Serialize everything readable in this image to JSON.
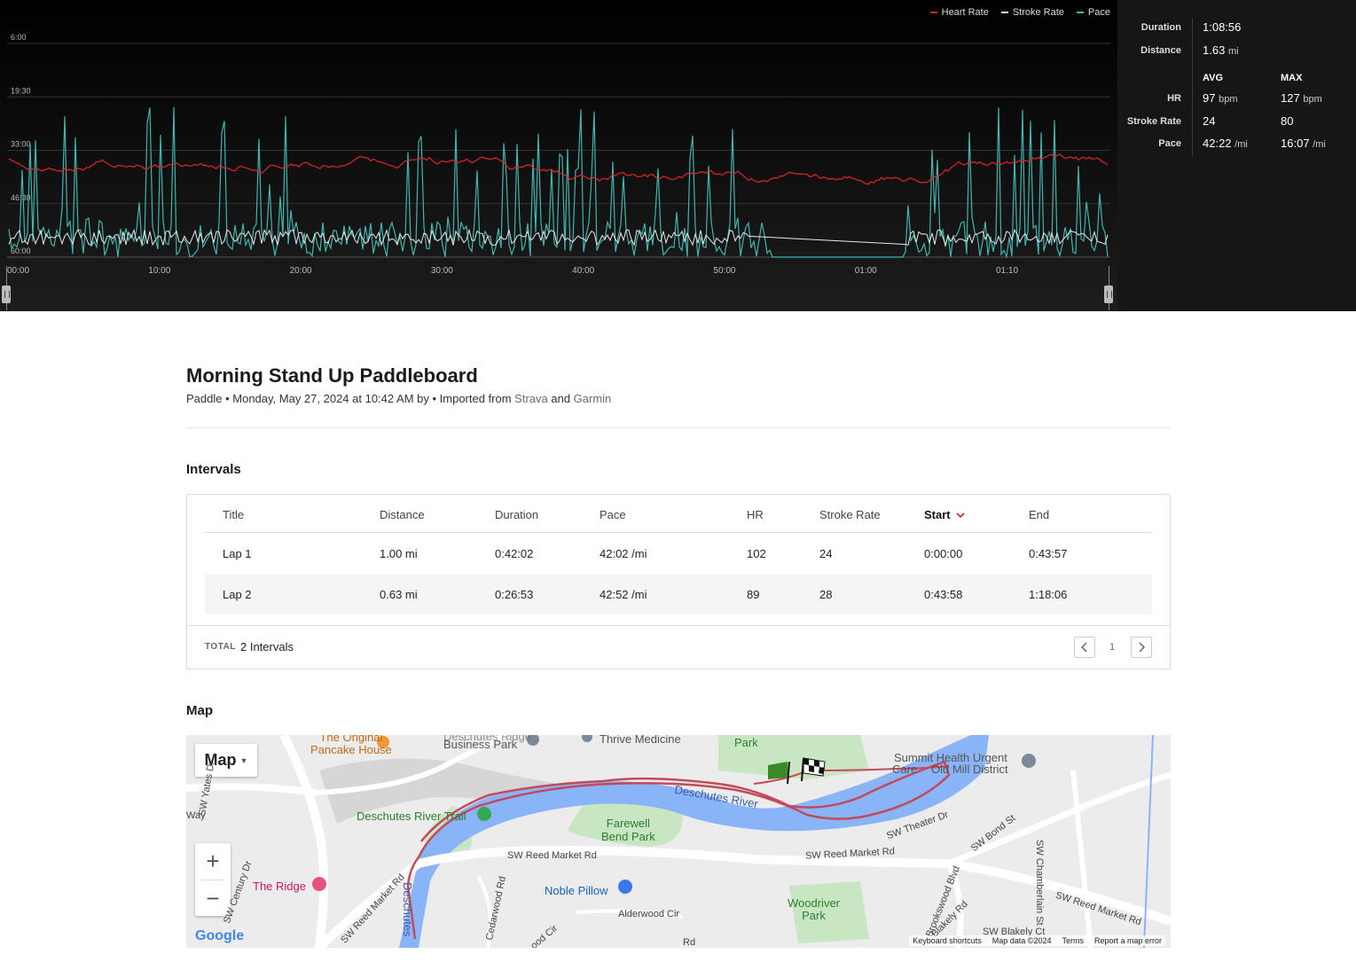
{
  "chart": {
    "legend": [
      {
        "label": "Heart Rate",
        "color": "#e0262a"
      },
      {
        "label": "Stroke Rate",
        "color": "#dddddd"
      },
      {
        "label": "Pace",
        "color": "#3fb6b0"
      }
    ],
    "y_ticks": [
      "6:00",
      "19:30",
      "33:00",
      "46:30",
      "60:00"
    ],
    "x_ticks": [
      "00:00",
      "10:00",
      "20:00",
      "30:00",
      "40:00",
      "50:00",
      "01:00",
      "01:10"
    ]
  },
  "stats": {
    "duration_label": "Duration",
    "duration_value": "1:08:56",
    "distance_label": "Distance",
    "distance_value": "1.63",
    "distance_unit": "mi",
    "avg_header": "AVG",
    "max_header": "MAX",
    "rows": [
      {
        "label": "HR",
        "avg": "97",
        "avg_unit": "bpm",
        "max": "127",
        "max_unit": "bpm"
      },
      {
        "label": "Stroke Rate",
        "avg": "24",
        "avg_unit": "",
        "max": "80",
        "max_unit": ""
      },
      {
        "label": "Pace",
        "avg": "42:22",
        "avg_unit": "/mi",
        "max": "16:07",
        "max_unit": "/mi"
      }
    ]
  },
  "activity": {
    "title": "Morning Stand Up Paddleboard",
    "meta_prefix": "Paddle • Monday, May 27, 2024 at 10:42 AM by • Imported from ",
    "source1": "Strava",
    "meta_and": " and ",
    "source2": "Garmin"
  },
  "intervals": {
    "section_title": "Intervals",
    "columns": [
      "Title",
      "Distance",
      "Duration",
      "Pace",
      "HR",
      "Stroke Rate",
      "Start",
      "End"
    ],
    "rows": [
      [
        "Lap 1",
        "1.00 mi",
        "0:42:02",
        "42:02 /mi",
        "102",
        "24",
        "0:00:00",
        "0:43:57"
      ],
      [
        "Lap 2",
        "0.63 mi",
        "0:26:53",
        "42:52 /mi",
        "89",
        "28",
        "0:43:58",
        "1:18:06"
      ]
    ],
    "total_label": "TOTAL",
    "total_value": "2 Intervals",
    "page": "1"
  },
  "map": {
    "section_title": "Map",
    "type_label": "Map",
    "labels": {
      "pancake": "The Original\nPancake House",
      "business_park": "Business Park",
      "deschutes_ridge": "Deschutes Ridge",
      "thrive": "Thrive Medicine",
      "park": "Park",
      "summit": "Summit Health Urgent",
      "care": "Care",
      "old_mill": "Old Mill District",
      "deschutes_trail": "Deschutes River Trail",
      "deschutes_river": "Deschutes River",
      "farewell": "Farewell\nBend Park",
      "reed_market_1": "SW Reed Market Rd",
      "reed_market_2": "SW Reed Market Rd",
      "reed_market_3": "SW Reed Market Rd",
      "reed_market_4": "SW Reed Market Rd",
      "theater": "SW Theater Dr",
      "bond": "SW Bond St",
      "chamberlain": "SW Chamberlain St",
      "yates": "SW Yates Dr",
      "way": "Way",
      "century": "SW Century Dr",
      "ridge": "The Ridge",
      "noble": "Noble Pillow",
      "cedarwood": "Cedarwood Rd",
      "alderwood": "Alderwood Cir",
      "woodriver": "Woodriver\nPark",
      "brookswood": "Brookswood Blvd",
      "blakely_rd": "Blakely Rd",
      "blakely_ct": "SW Blakely Ct",
      "deschutes_vert": "Deschutes",
      "wood_cir": "ood Cir",
      "rd": "Rd"
    },
    "footer": [
      "Keyboard shortcuts",
      "Map data ©2024",
      "Terms",
      "Report a map error"
    ],
    "google": "Google"
  }
}
